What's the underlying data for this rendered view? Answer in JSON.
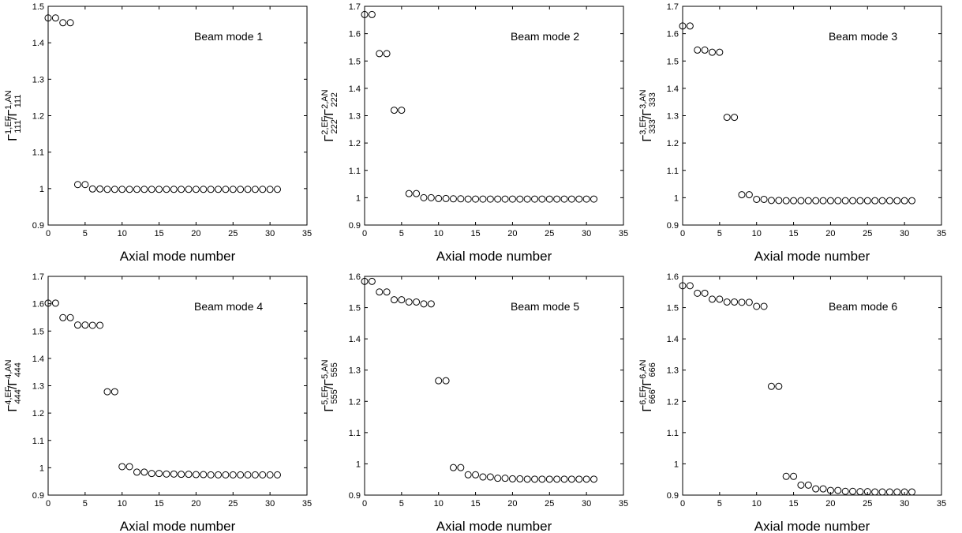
{
  "chart_data": [
    {
      "type": "scatter",
      "annotation": "Beam mode 1",
      "xlabel": "Axial mode number",
      "ylabel": {
        "gamma": "Γ",
        "sub1": "111",
        "sup1": "1,EF",
        "sep": "/",
        "sub2": "111",
        "sup2": "1,AN"
      },
      "xlim": [
        0,
        35
      ],
      "ylim": [
        0.9,
        1.5
      ],
      "xticks": [
        0,
        5,
        10,
        15,
        20,
        25,
        30,
        35
      ],
      "xtick_labels": [
        "0",
        "5",
        "10",
        "15",
        "20",
        "25",
        "30",
        "35"
      ],
      "yticks": [
        0.9,
        1.0,
        1.1,
        1.2,
        1.3,
        1.4,
        1.5
      ],
      "ytick_labels": [
        "0.9",
        "1",
        "1.1",
        "1.2",
        "1.3",
        "1.4",
        "1.5"
      ],
      "marker": "open-circle",
      "x": [
        0,
        1,
        2,
        3,
        4,
        5,
        6,
        7,
        8,
        9,
        10,
        11,
        12,
        13,
        14,
        15,
        16,
        17,
        18,
        19,
        20,
        21,
        22,
        23,
        24,
        25,
        26,
        27,
        28,
        29,
        30,
        31
      ],
      "y": [
        1.468,
        1.468,
        1.455,
        1.455,
        1.011,
        1.011,
        0.999,
        0.999,
        0.998,
        0.998,
        0.998,
        0.998,
        0.998,
        0.998,
        0.998,
        0.998,
        0.998,
        0.998,
        0.998,
        0.998,
        0.998,
        0.998,
        0.998,
        0.998,
        0.998,
        0.998,
        0.998,
        0.998,
        0.998,
        0.998,
        0.998,
        0.998
      ]
    },
    {
      "type": "scatter",
      "annotation": "Beam mode 2",
      "xlabel": "Axial mode number",
      "ylabel": {
        "gamma": "Γ",
        "sub1": "222",
        "sup1": "2,EF",
        "sep": "/",
        "sub2": "222",
        "sup2": "2,AN"
      },
      "xlim": [
        0,
        35
      ],
      "ylim": [
        0.9,
        1.7
      ],
      "xticks": [
        0,
        5,
        10,
        15,
        20,
        25,
        30,
        35
      ],
      "xtick_labels": [
        "0",
        "5",
        "10",
        "15",
        "20",
        "25",
        "30",
        "35"
      ],
      "yticks": [
        0.9,
        1.0,
        1.1,
        1.2,
        1.3,
        1.4,
        1.5,
        1.6,
        1.7
      ],
      "ytick_labels": [
        "0.9",
        "1",
        "1.1",
        "1.2",
        "1.3",
        "1.4",
        "1.5",
        "1.6",
        "1.7"
      ],
      "marker": "open-circle",
      "x": [
        0,
        1,
        2,
        3,
        4,
        5,
        6,
        7,
        8,
        9,
        10,
        11,
        12,
        13,
        14,
        15,
        16,
        17,
        18,
        19,
        20,
        21,
        22,
        23,
        24,
        25,
        26,
        27,
        28,
        29,
        30,
        31
      ],
      "y": [
        1.67,
        1.67,
        1.527,
        1.527,
        1.32,
        1.32,
        1.015,
        1.015,
        1.0,
        1.0,
        0.997,
        0.997,
        0.996,
        0.996,
        0.995,
        0.995,
        0.995,
        0.995,
        0.995,
        0.995,
        0.995,
        0.995,
        0.995,
        0.995,
        0.995,
        0.995,
        0.995,
        0.995,
        0.995,
        0.995,
        0.995,
        0.995
      ]
    },
    {
      "type": "scatter",
      "annotation": "Beam mode 3",
      "xlabel": "Axial mode number",
      "ylabel": {
        "gamma": "Γ",
        "sub1": "333",
        "sup1": "3,EF",
        "sep": "/",
        "sub2": "333",
        "sup2": "3,AN"
      },
      "xlim": [
        0,
        35
      ],
      "ylim": [
        0.9,
        1.7
      ],
      "xticks": [
        0,
        5,
        10,
        15,
        20,
        25,
        30,
        35
      ],
      "xtick_labels": [
        "0",
        "5",
        "10",
        "15",
        "20",
        "25",
        "30",
        "35"
      ],
      "yticks": [
        0.9,
        1.0,
        1.1,
        1.2,
        1.3,
        1.4,
        1.5,
        1.6,
        1.7
      ],
      "ytick_labels": [
        "0.9",
        "1",
        "1.1",
        "1.2",
        "1.3",
        "1.4",
        "1.5",
        "1.6",
        "1.7"
      ],
      "marker": "open-circle",
      "x": [
        0,
        1,
        2,
        3,
        4,
        5,
        6,
        7,
        8,
        9,
        10,
        11,
        12,
        13,
        14,
        15,
        16,
        17,
        18,
        19,
        20,
        21,
        22,
        23,
        24,
        25,
        26,
        27,
        28,
        29,
        30,
        31
      ],
      "y": [
        1.628,
        1.628,
        1.54,
        1.54,
        1.532,
        1.532,
        1.294,
        1.294,
        1.011,
        1.011,
        0.994,
        0.994,
        0.99,
        0.99,
        0.989,
        0.989,
        0.989,
        0.989,
        0.989,
        0.989,
        0.989,
        0.989,
        0.989,
        0.989,
        0.989,
        0.989,
        0.989,
        0.989,
        0.989,
        0.989,
        0.989,
        0.989
      ]
    },
    {
      "type": "scatter",
      "annotation": "Beam mode 4",
      "xlabel": "Axial mode number",
      "ylabel": {
        "gamma": "Γ",
        "sub1": "444",
        "sup1": "4,EF",
        "sep": "/",
        "sub2": "444",
        "sup2": "4,AN"
      },
      "xlim": [
        0,
        35
      ],
      "ylim": [
        0.9,
        1.7
      ],
      "xticks": [
        0,
        5,
        10,
        15,
        20,
        25,
        30,
        35
      ],
      "xtick_labels": [
        "0",
        "5",
        "10",
        "15",
        "20",
        "25",
        "30",
        "35"
      ],
      "yticks": [
        0.9,
        1.0,
        1.1,
        1.2,
        1.3,
        1.4,
        1.5,
        1.6,
        1.7
      ],
      "ytick_labels": [
        "0.9",
        "1",
        "1.1",
        "1.2",
        "1.3",
        "1.4",
        "1.5",
        "1.6",
        "1.7"
      ],
      "marker": "open-circle",
      "x": [
        0,
        1,
        2,
        3,
        4,
        5,
        6,
        7,
        8,
        9,
        10,
        11,
        12,
        13,
        14,
        15,
        16,
        17,
        18,
        19,
        20,
        21,
        22,
        23,
        24,
        25,
        26,
        27,
        28,
        29,
        30,
        31
      ],
      "y": [
        1.602,
        1.602,
        1.549,
        1.549,
        1.522,
        1.522,
        1.521,
        1.521,
        1.278,
        1.278,
        1.004,
        1.004,
        0.984,
        0.984,
        0.979,
        0.979,
        0.977,
        0.977,
        0.976,
        0.976,
        0.975,
        0.975,
        0.974,
        0.974,
        0.974,
        0.974,
        0.974,
        0.974,
        0.974,
        0.974,
        0.974,
        0.974
      ]
    },
    {
      "type": "scatter",
      "annotation": "Beam mode 5",
      "xlabel": "Axial mode number",
      "ylabel": {
        "gamma": "Γ",
        "sub1": "555",
        "sup1": "5,EF",
        "sep": "/",
        "sub2": "555",
        "sup2": "5,AN"
      },
      "xlim": [
        0,
        35
      ],
      "ylim": [
        0.9,
        1.6
      ],
      "xticks": [
        0,
        5,
        10,
        15,
        20,
        25,
        30,
        35
      ],
      "xtick_labels": [
        "0",
        "5",
        "10",
        "15",
        "20",
        "25",
        "30",
        "35"
      ],
      "yticks": [
        0.9,
        1.0,
        1.1,
        1.2,
        1.3,
        1.4,
        1.5,
        1.6
      ],
      "ytick_labels": [
        "0.9",
        "1",
        "1.1",
        "1.2",
        "1.3",
        "1.4",
        "1.5",
        "1.6"
      ],
      "marker": "open-circle",
      "x": [
        0,
        1,
        2,
        3,
        4,
        5,
        6,
        7,
        8,
        9,
        10,
        11,
        12,
        13,
        14,
        15,
        16,
        17,
        18,
        19,
        20,
        21,
        22,
        23,
        24,
        25,
        26,
        27,
        28,
        29,
        30,
        31
      ],
      "y": [
        1.584,
        1.584,
        1.55,
        1.55,
        1.525,
        1.525,
        1.518,
        1.518,
        1.512,
        1.512,
        1.266,
        1.266,
        0.988,
        0.988,
        0.965,
        0.965,
        0.958,
        0.958,
        0.954,
        0.954,
        0.952,
        0.952,
        0.951,
        0.951,
        0.951,
        0.951,
        0.951,
        0.951,
        0.951,
        0.951,
        0.951,
        0.951
      ]
    },
    {
      "type": "scatter",
      "annotation": "Beam mode 6",
      "xlabel": "Axial mode number",
      "ylabel": {
        "gamma": "Γ",
        "sub1": "666",
        "sup1": "6,EF",
        "sep": "/",
        "sub2": "666",
        "sup2": "6,AN"
      },
      "xlim": [
        0,
        35
      ],
      "ylim": [
        0.9,
        1.6
      ],
      "xticks": [
        0,
        5,
        10,
        15,
        20,
        25,
        30,
        35
      ],
      "xtick_labels": [
        "0",
        "5",
        "10",
        "15",
        "20",
        "25",
        "30",
        "35"
      ],
      "yticks": [
        0.9,
        1.0,
        1.1,
        1.2,
        1.3,
        1.4,
        1.5,
        1.6
      ],
      "ytick_labels": [
        "0.9",
        "1",
        "1.1",
        "1.2",
        "1.3",
        "1.4",
        "1.5",
        "1.6"
      ],
      "marker": "open-circle",
      "x": [
        0,
        1,
        2,
        3,
        4,
        5,
        6,
        7,
        8,
        9,
        10,
        11,
        12,
        13,
        14,
        15,
        16,
        17,
        18,
        19,
        20,
        21,
        22,
        23,
        24,
        25,
        26,
        27,
        28,
        29,
        30,
        31
      ],
      "y": [
        1.57,
        1.57,
        1.546,
        1.546,
        1.527,
        1.527,
        1.518,
        1.518,
        1.517,
        1.517,
        1.504,
        1.504,
        1.248,
        1.248,
        0.96,
        0.96,
        0.932,
        0.932,
        0.92,
        0.92,
        0.915,
        0.915,
        0.912,
        0.912,
        0.911,
        0.911,
        0.91,
        0.91,
        0.91,
        0.91,
        0.91,
        0.91
      ]
    }
  ]
}
